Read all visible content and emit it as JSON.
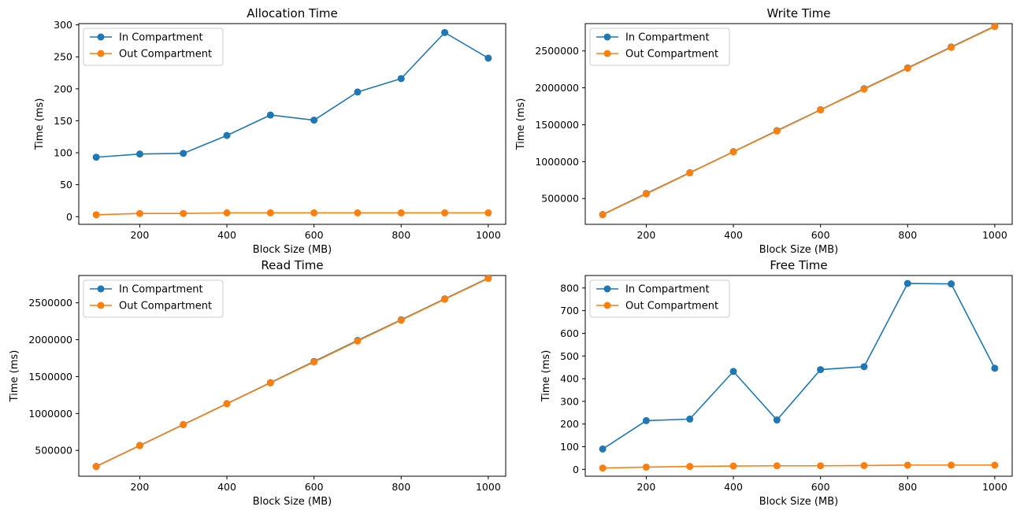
{
  "chart_data": [
    {
      "type": "line",
      "title": "Allocation Time",
      "xlabel": "Block Size (MB)",
      "ylabel": "Time (ms)",
      "x": [
        100,
        200,
        300,
        400,
        500,
        600,
        700,
        800,
        900,
        1000
      ],
      "xlim": [
        60,
        1040
      ],
      "ylim": [
        -12,
        302
      ],
      "xticks": [
        200,
        400,
        600,
        800,
        1000
      ],
      "yticks": [
        0,
        50,
        100,
        150,
        200,
        250,
        300
      ],
      "legend_position": "upper-left",
      "grid": false,
      "series": [
        {
          "name": "In Compartment",
          "color": "#1f77b4",
          "values": [
            93,
            98,
            99,
            127,
            159,
            151,
            195,
            216,
            288,
            248
          ]
        },
        {
          "name": "Out Compartment",
          "color": "#ff7f0e",
          "values": [
            3,
            5,
            5,
            6,
            6,
            6,
            6,
            6,
            6,
            6
          ]
        }
      ]
    },
    {
      "type": "line",
      "title": "Write Time",
      "xlabel": "Block Size (MB)",
      "ylabel": "Time (ms)",
      "x": [
        100,
        200,
        300,
        400,
        500,
        600,
        700,
        800,
        900,
        1000
      ],
      "xlim": [
        60,
        1040
      ],
      "ylim": [
        150000,
        2870000
      ],
      "xticks": [
        200,
        400,
        600,
        800,
        1000
      ],
      "yticks": [
        500000,
        1000000,
        1500000,
        2000000,
        2500000
      ],
      "legend_position": "upper-left",
      "grid": false,
      "series": [
        {
          "name": "In Compartment",
          "color": "#1f77b4",
          "values": [
            283000,
            568000,
            850000,
            1135000,
            1420000,
            1703000,
            1988000,
            2270000,
            2553000,
            2836000
          ]
        },
        {
          "name": "Out Compartment",
          "color": "#ff7f0e",
          "values": [
            281000,
            562000,
            847000,
            1132000,
            1415000,
            1700000,
            1982000,
            2265000,
            2548000,
            2830000
          ]
        }
      ]
    },
    {
      "type": "line",
      "title": "Read Time",
      "xlabel": "Block Size (MB)",
      "ylabel": "Time (ms)",
      "x": [
        100,
        200,
        300,
        400,
        500,
        600,
        700,
        800,
        900,
        1000
      ],
      "xlim": [
        60,
        1040
      ],
      "ylim": [
        150000,
        2870000
      ],
      "xticks": [
        200,
        400,
        600,
        800,
        1000
      ],
      "yticks": [
        500000,
        1000000,
        1500000,
        2000000,
        2500000
      ],
      "legend_position": "upper-left",
      "grid": false,
      "series": [
        {
          "name": "In Compartment",
          "color": "#1f77b4",
          "values": [
            283000,
            567000,
            850000,
            1134000,
            1418000,
            1705000,
            1990000,
            2270000,
            2553000,
            2836000
          ]
        },
        {
          "name": "Out Compartment",
          "color": "#ff7f0e",
          "values": [
            281000,
            564000,
            848000,
            1132000,
            1415000,
            1698000,
            1982000,
            2265000,
            2548000,
            2830000
          ]
        }
      ]
    },
    {
      "type": "line",
      "title": "Free Time",
      "xlabel": "Block Size (MB)",
      "ylabel": "Time (ms)",
      "x": [
        100,
        200,
        300,
        400,
        500,
        600,
        700,
        800,
        900,
        1000
      ],
      "xlim": [
        60,
        1040
      ],
      "ylim": [
        -30,
        855
      ],
      "xticks": [
        200,
        400,
        600,
        800,
        1000
      ],
      "yticks": [
        0,
        100,
        200,
        300,
        400,
        500,
        600,
        700,
        800
      ],
      "legend_position": "upper-left",
      "grid": false,
      "series": [
        {
          "name": "In Compartment",
          "color": "#1f77b4",
          "values": [
            90,
            215,
            222,
            432,
            218,
            440,
            453,
            820,
            818,
            446
          ]
        },
        {
          "name": "Out Compartment",
          "color": "#ff7f0e",
          "values": [
            6,
            10,
            13,
            15,
            16,
            16,
            17,
            19,
            19,
            19
          ]
        }
      ]
    }
  ]
}
